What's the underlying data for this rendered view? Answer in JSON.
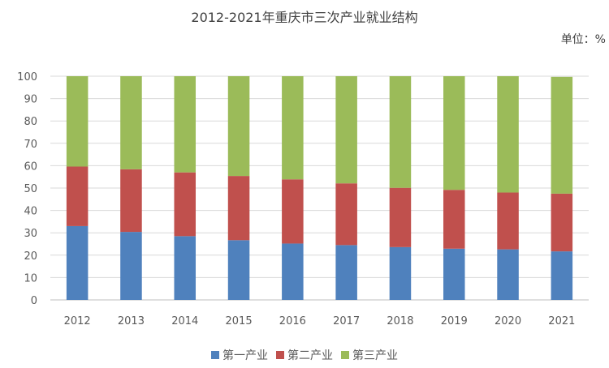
{
  "chart_data": {
    "type": "bar",
    "stacked": true,
    "title": "2012-2021年重庆市三次产业就业结构",
    "unit_label": "单位：%",
    "xlabel": "",
    "ylabel": "",
    "ylim": [
      0,
      100
    ],
    "yticks": [
      0,
      10,
      20,
      30,
      40,
      50,
      60,
      70,
      80,
      90,
      100
    ],
    "grid": true,
    "legend_position": "bottom",
    "categories": [
      "2012",
      "2013",
      "2014",
      "2015",
      "2016",
      "2017",
      "2018",
      "2019",
      "2020",
      "2021"
    ],
    "series": [
      {
        "name": "第一产业",
        "color": "#4F81BD",
        "values": [
          33.0,
          30.4,
          28.5,
          26.7,
          25.2,
          24.5,
          23.6,
          22.9,
          22.6,
          21.7
        ]
      },
      {
        "name": "第二产业",
        "color": "#C0504D",
        "values": [
          26.6,
          28.0,
          28.5,
          28.7,
          28.7,
          27.6,
          26.5,
          26.3,
          25.4,
          25.8
        ]
      },
      {
        "name": "第三产业",
        "color": "#9BBB59",
        "values": [
          40.4,
          41.6,
          43.0,
          44.6,
          46.1,
          47.9,
          49.9,
          50.8,
          52.0,
          52.2
        ]
      }
    ]
  }
}
